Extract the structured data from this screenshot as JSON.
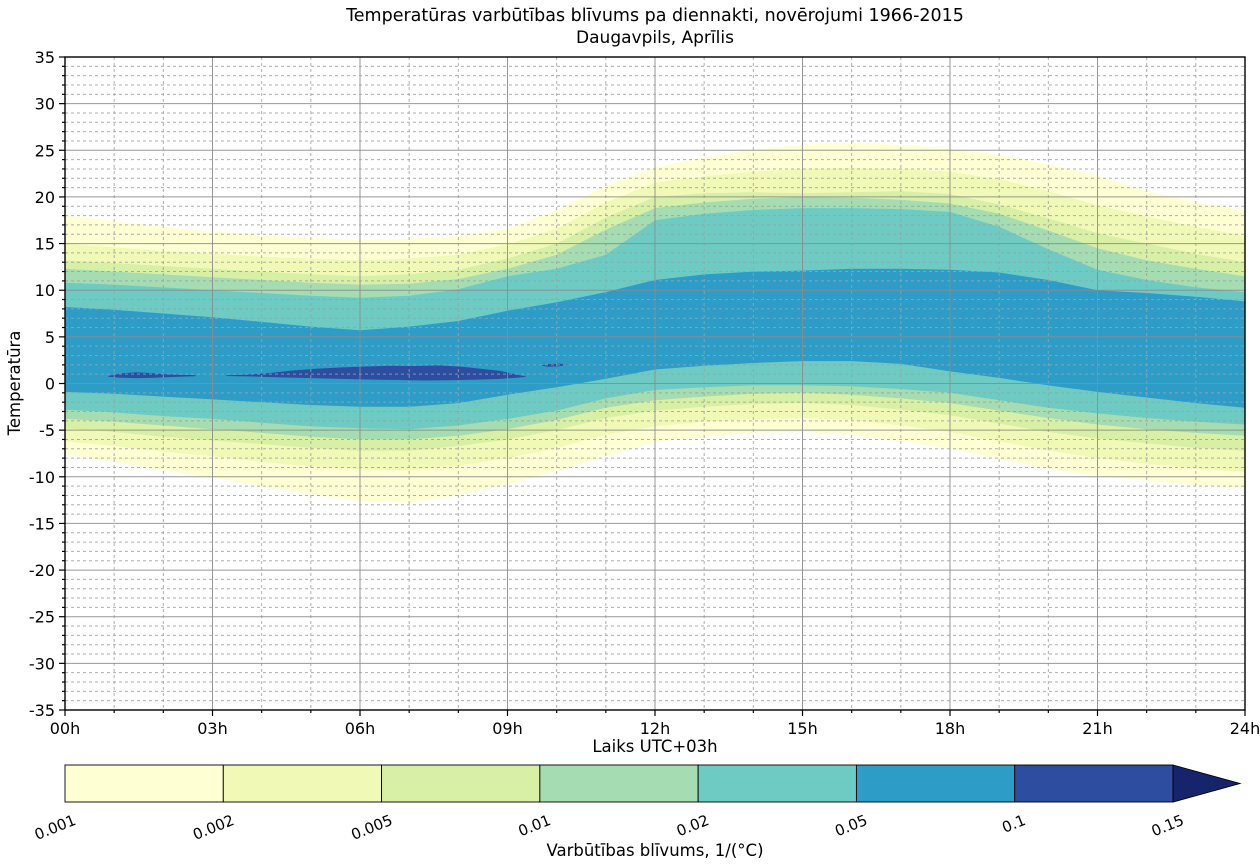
{
  "title": {
    "line1": "Temperatūras varbūtības blīvums pa diennakti, novērojumi 1966-2015",
    "line2": "Daugavpils, Aprīlis"
  },
  "axes": {
    "x": {
      "label": "Laiks UTC+03h",
      "tick_labels": [
        "00h",
        "03h",
        "06h",
        "09h",
        "12h",
        "15h",
        "18h",
        "21h",
        "24h"
      ],
      "tick_hours": [
        0,
        3,
        6,
        9,
        12,
        15,
        18,
        21,
        24
      ],
      "range_hours": [
        0,
        24
      ],
      "minor_step_hours": 1
    },
    "y": {
      "label": "Temperatūra",
      "tick_values": [
        35,
        30,
        25,
        20,
        15,
        10,
        5,
        0,
        -5,
        -10,
        -15,
        -20,
        -25,
        -30,
        -35
      ],
      "range": [
        -35,
        35
      ],
      "minor_step": 1
    }
  },
  "colorbar": {
    "label": "Varbūtības blīvums, 1/(°C)",
    "tick_labels": [
      "0.001",
      "0.002",
      "0.005",
      "0.01",
      "0.02",
      "0.05",
      "0.1",
      "0.15"
    ],
    "segment_colors": [
      "#ffffd4",
      "#f0f9b6",
      "#d8efa6",
      "#a5dcb1",
      "#6ecbc3",
      "#2d9dc8",
      "#2c4da0"
    ],
    "arrow_color": "#16246b"
  },
  "colors": {
    "background": "#ffffff",
    "frame": "#000000",
    "grid_major": "#8c8c8c",
    "grid_minor": "#a0a0a0"
  },
  "chart_data": {
    "type": "filled-contour",
    "title": "Temperatūras varbūtības blīvums pa diennakti, novērojumi 1966-2015 — Daugavpils, Aprīlis",
    "xlabel": "Laiks UTC+03h",
    "ylabel": "Temperatūra",
    "xlim_hours": [
      0,
      24
    ],
    "ylim": [
      -35,
      35
    ],
    "grid": true,
    "levels": [
      0.001,
      0.002,
      0.005,
      0.01,
      0.02,
      0.05,
      0.1,
      0.15
    ],
    "x_hours": [
      0,
      1,
      2,
      3,
      4,
      5,
      6,
      7,
      8,
      9,
      10,
      11,
      12,
      13,
      14,
      15,
      16,
      17,
      18,
      19,
      20,
      21,
      22,
      23,
      24
    ],
    "bands": [
      {
        "level": 0.001,
        "color": "#ffffd4",
        "top": [
          18.0,
          17.4,
          16.8,
          16.3,
          15.9,
          15.6,
          15.4,
          15.5,
          15.8,
          16.6,
          18.6,
          21.2,
          23.2,
          24.2,
          25.1,
          25.6,
          25.8,
          25.6,
          25.2,
          24.5,
          23.5,
          22.3,
          20.6,
          19.5,
          18.5
        ],
        "bottom": [
          -7.6,
          -8.4,
          -9.3,
          -10.1,
          -11.0,
          -11.9,
          -12.6,
          -12.8,
          -12.0,
          -10.8,
          -9.4,
          -7.8,
          -6.3,
          -5.7,
          -5.3,
          -5.2,
          -5.5,
          -6.2,
          -7.0,
          -8.1,
          -9.2,
          -9.9,
          -10.4,
          -10.9,
          -11.2
        ]
      },
      {
        "level": 0.002,
        "color": "#f0f9b6",
        "top": [
          15.0,
          14.6,
          14.2,
          13.9,
          13.6,
          13.4,
          13.2,
          13.4,
          13.8,
          14.9,
          16.6,
          19.4,
          21.5,
          22.2,
          22.7,
          23.0,
          23.1,
          23.0,
          22.7,
          21.9,
          20.6,
          19.1,
          17.9,
          16.8,
          15.8
        ],
        "bottom": [
          -6.2,
          -6.7,
          -7.3,
          -7.8,
          -8.4,
          -8.9,
          -9.2,
          -9.3,
          -8.8,
          -8.0,
          -6.9,
          -5.5,
          -4.6,
          -4.1,
          -3.8,
          -3.7,
          -3.9,
          -4.5,
          -5.2,
          -6.2,
          -7.2,
          -8.0,
          -8.6,
          -9.1,
          -9.5
        ]
      },
      {
        "level": 0.005,
        "color": "#d8efa6",
        "top": [
          13.2,
          12.9,
          12.6,
          12.3,
          12.0,
          11.7,
          11.5,
          11.7,
          12.2,
          13.4,
          15.0,
          17.8,
          20.0,
          20.4,
          20.5,
          20.4,
          20.5,
          20.6,
          20.3,
          19.2,
          17.7,
          16.1,
          15.0,
          13.9,
          13.0
        ],
        "bottom": [
          -4.8,
          -5.2,
          -5.7,
          -6.1,
          -6.5,
          -6.9,
          -7.2,
          -7.2,
          -6.7,
          -6.0,
          -5.0,
          -3.7,
          -2.9,
          -2.5,
          -2.2,
          -2.1,
          -2.3,
          -2.8,
          -3.4,
          -4.3,
          -5.2,
          -5.9,
          -6.4,
          -6.9,
          -7.2
        ]
      },
      {
        "level": 0.01,
        "color": "#a5dcb1",
        "top": [
          12.3,
          12.0,
          11.7,
          11.4,
          11.1,
          10.8,
          10.6,
          10.7,
          11.2,
          12.3,
          13.8,
          16.5,
          18.8,
          19.4,
          19.8,
          20.0,
          19.9,
          19.7,
          19.3,
          18.2,
          16.4,
          14.5,
          13.2,
          12.3,
          11.5
        ],
        "bottom": [
          -3.8,
          -4.1,
          -4.5,
          -4.9,
          -5.3,
          -5.7,
          -6.0,
          -6.0,
          -5.6,
          -4.9,
          -3.9,
          -2.6,
          -1.8,
          -1.4,
          -1.1,
          -1.0,
          -1.2,
          -1.6,
          -2.1,
          -2.9,
          -3.7,
          -4.4,
          -4.9,
          -5.3,
          -5.6
        ]
      },
      {
        "level": 0.02,
        "color": "#6ecbc3",
        "top": [
          10.8,
          10.6,
          10.3,
          10.0,
          9.7,
          9.4,
          9.2,
          9.4,
          10.1,
          11.5,
          12.3,
          13.8,
          17.5,
          18.2,
          18.6,
          18.8,
          18.8,
          18.7,
          18.4,
          16.8,
          14.4,
          12.2,
          11.1,
          10.3,
          9.8
        ],
        "bottom": [
          -2.8,
          -3.1,
          -3.5,
          -3.8,
          -4.2,
          -4.6,
          -4.8,
          -4.9,
          -4.5,
          -3.8,
          -2.9,
          -1.6,
          -0.7,
          -0.4,
          -0.2,
          -0.2,
          -0.3,
          -0.6,
          -1.0,
          -1.8,
          -2.6,
          -3.2,
          -3.7,
          -4.1,
          -4.4
        ]
      },
      {
        "level": 0.05,
        "color": "#2d9dc8",
        "top": [
          8.2,
          7.9,
          7.5,
          7.1,
          6.6,
          6.1,
          5.7,
          6.1,
          6.7,
          7.8,
          8.7,
          9.8,
          11.1,
          11.7,
          12.0,
          12.1,
          12.3,
          12.3,
          12.2,
          11.9,
          11.1,
          10.0,
          9.7,
          9.3,
          8.8
        ],
        "bottom": [
          -0.9,
          -1.1,
          -1.4,
          -1.7,
          -2.0,
          -2.3,
          -2.5,
          -2.5,
          -2.1,
          -1.2,
          -0.4,
          0.5,
          1.5,
          1.9,
          2.2,
          2.4,
          2.4,
          2.1,
          1.3,
          0.6,
          -0.2,
          -0.9,
          -1.5,
          -2.1,
          -2.6
        ]
      }
    ],
    "high_density_regions": [
      {
        "level": 0.1,
        "color": "#2c4da0",
        "name": "lens-01h-03h",
        "polygon_h_T": [
          [
            0.88,
            0.82
          ],
          [
            1.15,
            1.08
          ],
          [
            1.45,
            1.2
          ],
          [
            1.75,
            1.12
          ],
          [
            2.05,
            0.98
          ],
          [
            2.4,
            0.92
          ],
          [
            2.65,
            0.9
          ],
          [
            2.65,
            0.78
          ],
          [
            2.4,
            0.74
          ],
          [
            2.05,
            0.66
          ],
          [
            1.75,
            0.6
          ],
          [
            1.45,
            0.58
          ],
          [
            1.15,
            0.62
          ],
          [
            0.88,
            0.72
          ]
        ]
      },
      {
        "level": 0.1,
        "color": "#2c4da0",
        "name": "main-blob-03h-09h",
        "polygon_h_T": [
          [
            3.28,
            0.88
          ],
          [
            3.7,
            0.95
          ],
          [
            4.1,
            1.08
          ],
          [
            4.6,
            1.38
          ],
          [
            5.1,
            1.58
          ],
          [
            5.6,
            1.72
          ],
          [
            6.1,
            1.82
          ],
          [
            6.6,
            1.9
          ],
          [
            7.1,
            1.88
          ],
          [
            7.6,
            1.94
          ],
          [
            8.1,
            1.78
          ],
          [
            8.5,
            1.55
          ],
          [
            8.85,
            1.35
          ],
          [
            9.15,
            1.0
          ],
          [
            9.4,
            0.72
          ],
          [
            9.15,
            0.6
          ],
          [
            8.8,
            0.48
          ],
          [
            8.3,
            0.4
          ],
          [
            7.8,
            0.34
          ],
          [
            7.3,
            0.32
          ],
          [
            6.8,
            0.37
          ],
          [
            6.3,
            0.42
          ],
          [
            5.8,
            0.47
          ],
          [
            5.3,
            0.54
          ],
          [
            4.8,
            0.6
          ],
          [
            4.3,
            0.68
          ],
          [
            3.9,
            0.74
          ],
          [
            3.55,
            0.78
          ],
          [
            3.28,
            0.8
          ]
        ]
      },
      {
        "level": 0.1,
        "color": "#2c4da0",
        "name": "lens-10h",
        "polygon_h_T": [
          [
            9.68,
            1.93
          ],
          [
            9.85,
            2.08
          ],
          [
            10.05,
            2.13
          ],
          [
            10.22,
            2.0
          ],
          [
            10.05,
            1.84
          ],
          [
            9.83,
            1.8
          ]
        ]
      }
    ]
  }
}
